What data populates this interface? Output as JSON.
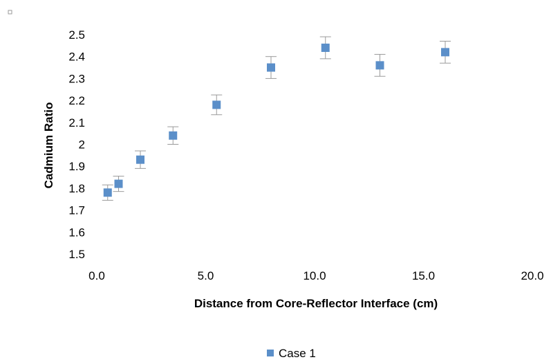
{
  "chart_data": {
    "type": "scatter",
    "title": "",
    "xlabel": "Distance from Core-Reflector Interface (cm)",
    "ylabel": "Cadmium Ratio",
    "xlim": [
      0,
      20
    ],
    "ylim": [
      1.5,
      2.5
    ],
    "x_ticks": [
      "0.0",
      "5.0",
      "10.0",
      "15.0",
      "20.0"
    ],
    "y_ticks": [
      "1.5",
      "1.6",
      "1.7",
      "1.8",
      "1.9",
      "2",
      "2.1",
      "2.2",
      "2.3",
      "2.4",
      "2.5"
    ],
    "grid": false,
    "legend_position": "bottom",
    "series": [
      {
        "name": "Case 1",
        "color": "#5b8fc9",
        "marker": "square",
        "points": [
          {
            "x": 0.5,
            "y": 1.78,
            "err": 0.035
          },
          {
            "x": 1.0,
            "y": 1.82,
            "err": 0.035
          },
          {
            "x": 2.0,
            "y": 1.93,
            "err": 0.04
          },
          {
            "x": 3.5,
            "y": 2.04,
            "err": 0.04
          },
          {
            "x": 5.5,
            "y": 2.18,
            "err": 0.045
          },
          {
            "x": 8.0,
            "y": 2.35,
            "err": 0.05
          },
          {
            "x": 10.5,
            "y": 2.44,
            "err": 0.05
          },
          {
            "x": 13.0,
            "y": 2.36,
            "err": 0.05
          },
          {
            "x": 16.0,
            "y": 2.42,
            "err": 0.05
          }
        ]
      }
    ]
  }
}
